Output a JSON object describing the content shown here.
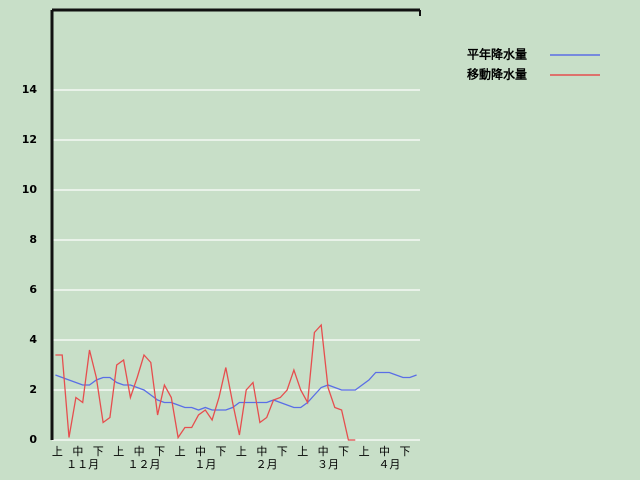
{
  "chart_data": {
    "type": "line",
    "categories": [
      "上",
      null,
      null,
      "中",
      null,
      null,
      "下",
      null,
      null,
      "上",
      null,
      null,
      "中",
      null,
      null,
      "下",
      null,
      null,
      "上",
      null,
      null,
      "中",
      null,
      null,
      "下",
      null,
      null,
      "上",
      null,
      null,
      "中",
      null,
      null,
      "下",
      null,
      null,
      "上",
      null,
      null,
      "中",
      null,
      null,
      "下",
      null,
      null,
      "上",
      null,
      null,
      "中",
      null,
      null,
      "下",
      null,
      null
    ],
    "months": [
      "１１月",
      "１２月",
      "１月",
      "２月",
      "３月",
      "４月"
    ],
    "series": [
      {
        "name": "平年降水量",
        "color": "#5a6ee6",
        "values": [
          2.6,
          2.5,
          2.4,
          2.3,
          2.2,
          2.2,
          2.4,
          2.5,
          2.5,
          2.3,
          2.2,
          2.2,
          2.1,
          2.0,
          1.8,
          1.6,
          1.5,
          1.5,
          1.4,
          1.3,
          1.3,
          1.2,
          1.3,
          1.2,
          1.2,
          1.2,
          1.3,
          1.5,
          1.5,
          1.5,
          1.5,
          1.5,
          1.6,
          1.5,
          1.4,
          1.3,
          1.3,
          1.5,
          1.8,
          2.1,
          2.2,
          2.1,
          2.0,
          2.0,
          2.0,
          2.2,
          2.4,
          2.7,
          2.7,
          2.7,
          2.6,
          2.5,
          2.5,
          2.6
        ]
      },
      {
        "name": "移動降水量",
        "color": "#e64e4e",
        "values": [
          3.4,
          3.4,
          0.1,
          1.7,
          1.5,
          3.6,
          2.5,
          0.7,
          0.9,
          3.0,
          3.2,
          1.7,
          2.5,
          3.4,
          3.1,
          1.0,
          2.2,
          1.7,
          0.1,
          0.5,
          0.5,
          1.0,
          1.2,
          0.8,
          1.7,
          2.9,
          1.5,
          0.2,
          2.0,
          2.3,
          0.7,
          0.9,
          1.6,
          1.7,
          2.0,
          2.8,
          2.0,
          1.5,
          4.3,
          4.6,
          2.1,
          1.3,
          1.2,
          0,
          0,
          null,
          null,
          null,
          null,
          null,
          null,
          null,
          null,
          null
        ]
      }
    ],
    "ylim": [
      0,
      17.2
    ],
    "yticks": [
      0,
      2,
      4,
      6,
      8,
      10,
      12,
      14
    ],
    "grid": true,
    "legend": "top-right"
  }
}
